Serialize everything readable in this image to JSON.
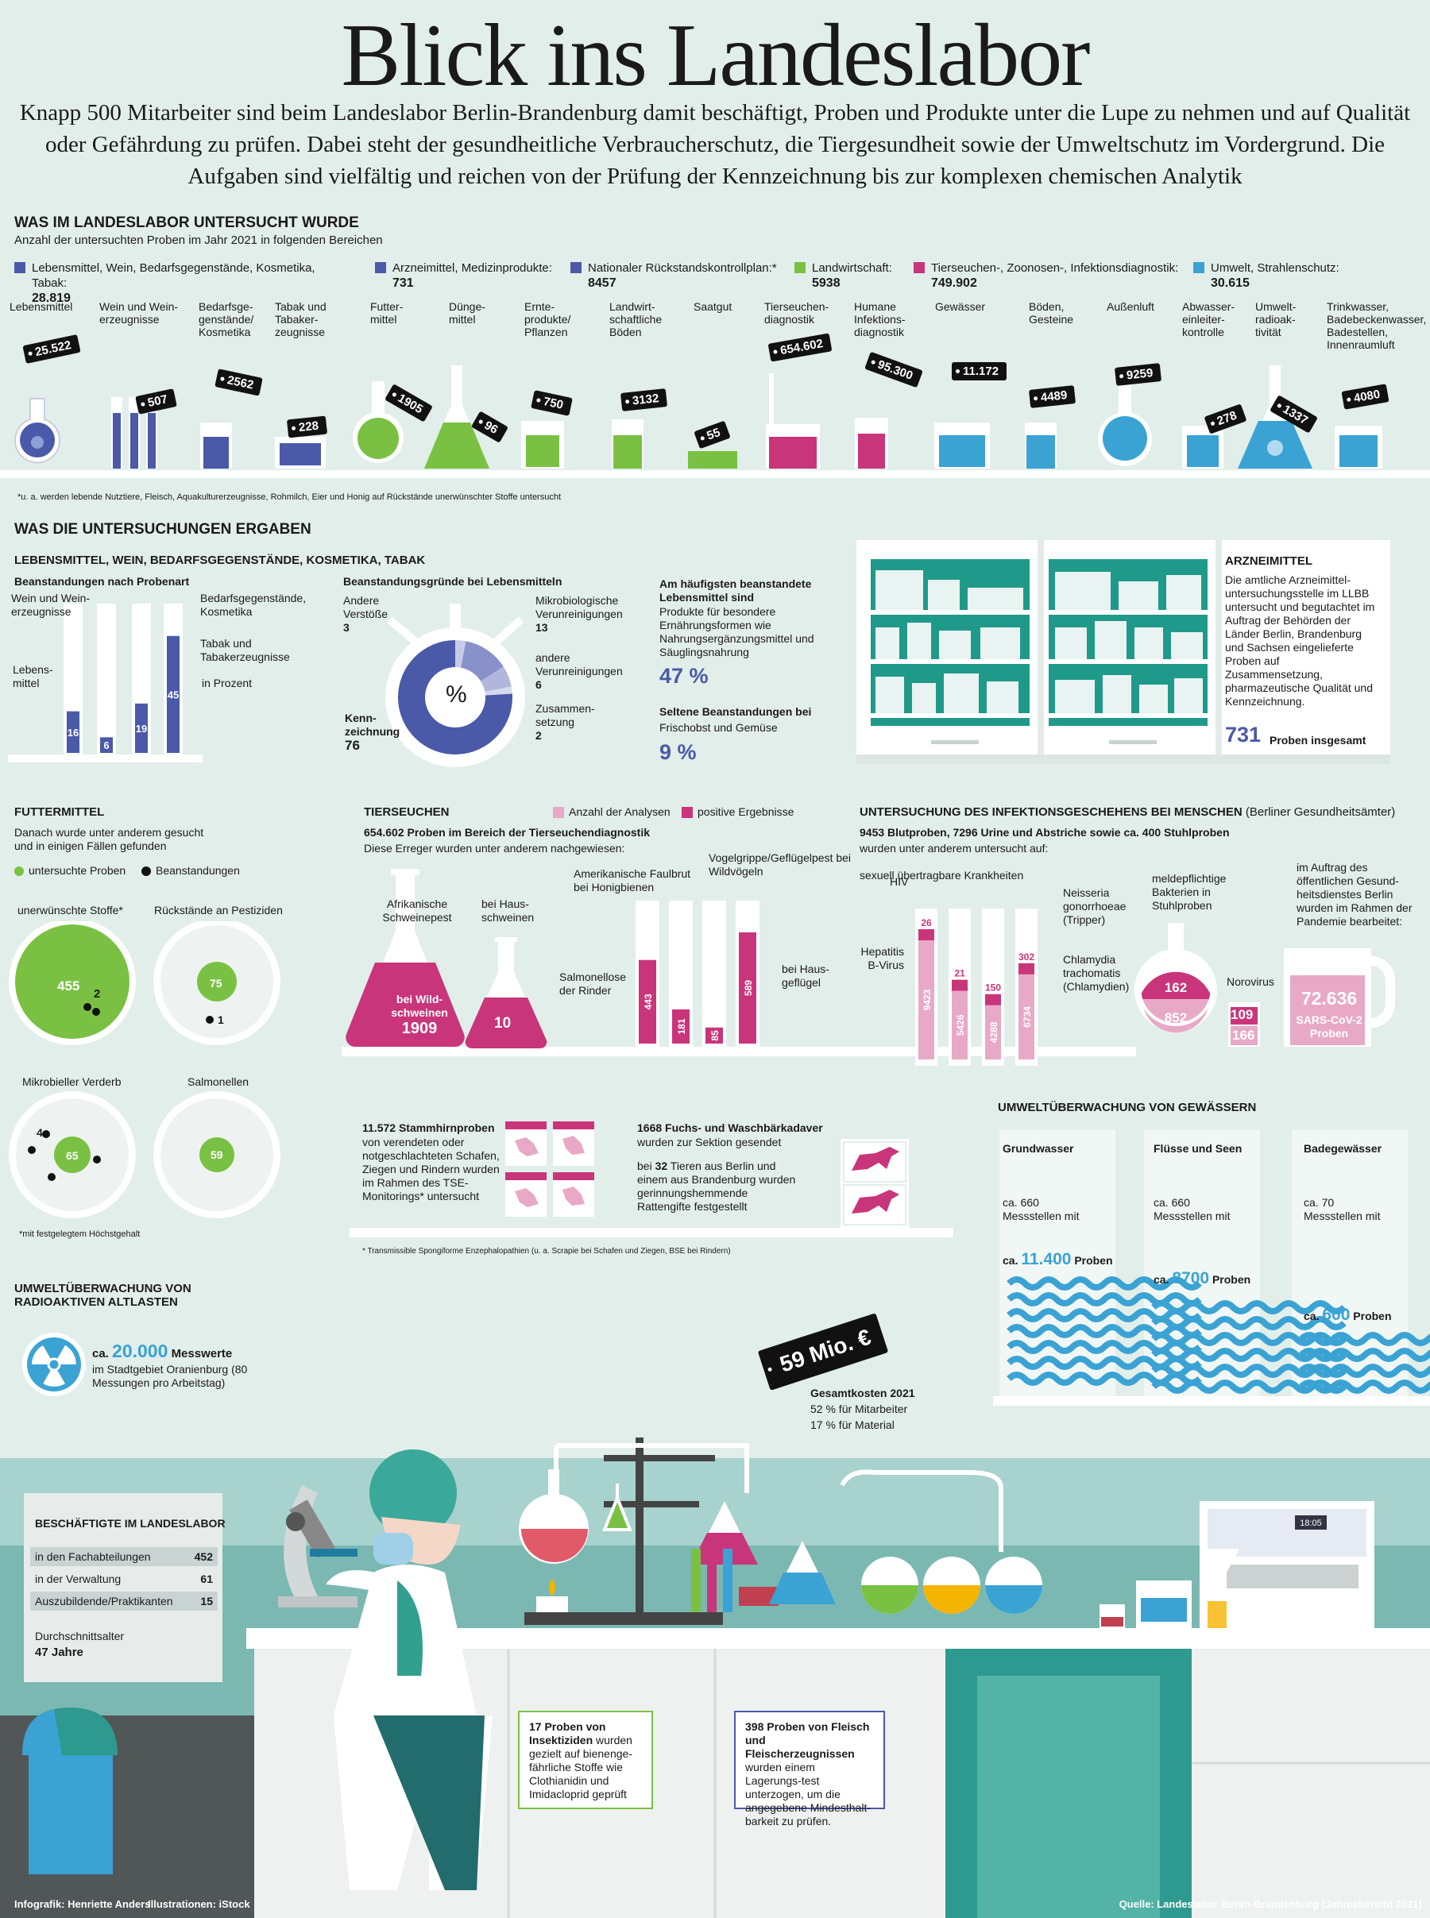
{
  "title": "Blick ins Landeslabor",
  "intro": "Knapp 500 Mitarbeiter sind beim Landeslabor Berlin-Brandenburg damit beschäftigt, Proben und Produkte unter die Lupe zu nehmen und auf Qualität oder Gefährdung zu prüfen. Dabei steht der gesundheitliche Verbraucherschutz, die Tiergesundheit sowie der Umweltschutz im Vordergrund. Die Aufgaben sind vielfältig und reichen von der Prüfung der Kennzeichnung bis zur komplexen chemischen Analytik",
  "colors": {
    "blue_dark": "#4a5aa8",
    "green": "#7ac143",
    "pink": "#c9357a",
    "light_blue": "#3aa3d4",
    "bg": "#e2eeea"
  },
  "section1": {
    "heading": "WAS IM LANDESLABOR UNTERSUCHT WURDE",
    "subheading": "Anzahl der untersuchten Proben im Jahr 2021 in folgenden Bereichen",
    "legend": [
      {
        "label": "Lebensmittel, Wein, Bedarfsgegenstände, Kosmetika, Tabak:",
        "value": "28.819",
        "color": "#4a5aa8"
      },
      {
        "label": "Arzneimittel, Medizinprodukte:",
        "value": "731",
        "color": "#4a5aa8"
      },
      {
        "label": "Nationaler Rückstandskontrollplan:*",
        "value": "8457",
        "color": "#4a5aa8"
      },
      {
        "label": "Landwirtschaft:",
        "value": "5938",
        "color": "#7ac143"
      },
      {
        "label": "Tierseuchen-, Zoonosen-, Infektionsdiagnostik:",
        "value": "749.902",
        "color": "#c9357a"
      },
      {
        "label": "Umwelt, Strahlenschutz:",
        "value": "30.615",
        "color": "#3aa3d4"
      }
    ],
    "categories": [
      {
        "label": "Lebensmittel",
        "value": "25.522"
      },
      {
        "label": "Wein und Wein-erzeugnisse",
        "value": "507"
      },
      {
        "label": "Bedarfsge-genstände/ Kosmetika",
        "value": "2562"
      },
      {
        "label": "Tabak und Tabaker-zeugnisse",
        "value": "228"
      },
      {
        "label": "Futter-mittel",
        "value": "1905"
      },
      {
        "label": "Dünge-mittel",
        "value": "96"
      },
      {
        "label": "Ernte-produkte/ Pflanzen",
        "value": "750"
      },
      {
        "label": "Landwirt-schaftliche Böden",
        "value": "3132"
      },
      {
        "label": "Saatgut",
        "value": "55"
      },
      {
        "label": "Tierseuchen-diagnostik",
        "value": "654.602"
      },
      {
        "label": "Humane Infektions-diagnostik",
        "value": "95.300"
      },
      {
        "label": "Gewässer",
        "value": "11.172"
      },
      {
        "label": "Böden, Gesteine",
        "value": "4489"
      },
      {
        "label": "Außenluft",
        "value": "9259"
      },
      {
        "label": "Abwasser-einleiter-kontrolle",
        "value": "278"
      },
      {
        "label": "Umwelt-radioak-tivität",
        "value": "1337"
      },
      {
        "label": "Trinkwasser, Badebeckenwasser, Badestellen, Innenraumluft",
        "value": "4080"
      }
    ],
    "footnote": "*u. a. werden lebende Nutztiere, Fleisch, Aquakulturerzeugnisse, Rohmilch, Eier und Honig auf Rückstände unerwünschter Stoffe untersucht"
  },
  "section2": {
    "heading": "WAS DIE UNTERSUCHUNGEN ERGABEN",
    "subheading": "LEBENSMITTEL, WEIN, BEDARFSGEGENSTÄNDE, KOSMETIKA, TABAK",
    "beanst_title": "Beanstandungen nach Probenart",
    "beanst_unit": "in Prozent",
    "beanst_bars": [
      {
        "label": "Lebens-mittel",
        "value": 16
      },
      {
        "label": "Wein und Wein-erzeugnisse",
        "value": 6
      },
      {
        "label": "Bedarfsgegenstände, Kosmetika",
        "value": 19
      },
      {
        "label": "Tabak und Tabakerzeugnisse",
        "value": 45
      }
    ],
    "gruende_title": "Beanstandungsgründe bei Lebensmitteln",
    "gruende_center": "%",
    "gruende": [
      {
        "label": "Andere Verstöße",
        "value": "3"
      },
      {
        "label": "Mikrobiologische Verunreinigungen",
        "value": "13"
      },
      {
        "label": "andere Verunreinigungen",
        "value": "6"
      },
      {
        "label": "Zusammen-setzung",
        "value": "2"
      },
      {
        "label": "Kenn-zeichnung",
        "value": "76"
      }
    ],
    "most_title": "Am häufigsten beanstandete Lebensmittel sind",
    "most_text": "Produkte für besondere Ernährungsformen wie Nahrungsergänzungsmittel und Säuglingsnahrung",
    "most_value": "47 %",
    "rare_title": "Seltene Beanstandungen bei",
    "rare_text": "Frischobst und Gemüse",
    "rare_value": "9 %",
    "arznei_title": "ARZNEIMITTEL",
    "arznei_text": "Die amtliche Arzneimittel-untersuchungsstelle im LLBB untersucht und begutachtet im Auftrag der Behörden der Länder Berlin, Brandenburg und Sachsen eingelieferte Proben auf Zusammensetzung, pharmazeutische Qualität und Kennzeichnung.",
    "arznei_value": "731",
    "arznei_value_label": "Proben insgesamt"
  },
  "futter": {
    "heading": "FUTTERMITTEL",
    "text": "Danach wurde unter anderem gesucht und in einigen Fällen gefunden",
    "legend_green": "untersuchte Proben",
    "legend_black": "Beanstandungen",
    "circles": [
      {
        "label": "unerwünschte Stoffe*",
        "samples": "455",
        "findings": "2"
      },
      {
        "label": "Rückstände an Pestiziden",
        "samples": "75",
        "findings": "1"
      },
      {
        "label": "Mikrobieller Verderb",
        "samples": "65",
        "findings": "4"
      },
      {
        "label": "Salmonellen",
        "samples": "59",
        "findings": ""
      }
    ],
    "footnote": "*mit festgelegtem Höchstgehalt"
  },
  "tier": {
    "heading": "TIERSEUCHEN",
    "legend_a": "Anzahl der Analysen",
    "legend_b": "positive Ergebnisse",
    "sub_bold": "654.602 Proben im Bereich der Tierseuchendiagnostik",
    "sub": "Diese Erreger wurden unter anderem nachgewiesen:",
    "flask1_label": "Afrikanische Schweinepest",
    "flask1_inner": "bei Wild-schweinen",
    "flask1_value": "1909",
    "flask2_label": "bei Haus-schweinen",
    "flask2_value": "10",
    "tubes_label_a": "Amerikanische Faulbrut bei Honigbienen",
    "tubes_label_b": "Vogelgrippe/Geflügelpest bei Wildvögeln",
    "tubes_label_c": "Salmonellose der Rinder",
    "tubes_label_d": "bei Haus-geflügel",
    "tubes": [
      "443",
      "181",
      "85",
      "589"
    ],
    "tse_bold": "11.572 Stammhirnproben",
    "tse_text": "von verendeten oder notgeschlachteten Schafen, Ziegen und Rindern wurden im Rahmen des TSE-Monitorings* untersucht",
    "fox_bold": "1668 Fuchs- und Waschbärkadaver",
    "fox_text1": "wurden zur Sektion gesendet",
    "fox_text2a": "bei ",
    "fox_text2b": "32",
    "fox_text2c": " Tieren aus Berlin und einem aus Brandenburg wurden gerinnungshemmende Rattengifte festgestellt",
    "footnote": "* Transmissible Spongiforme Enzephalopathien (u. a. Scrapie bei Schafen und Ziegen, BSE bei Rindern)"
  },
  "mensch": {
    "heading": "UNTERSUCHUNG DES INFEKTIONSGESCHEHENS BEI MENSCHEN",
    "heading_note": "(Berliner Gesundheitsämter)",
    "sub_bold": "9453 Blutproben, 7296 Urine und Abstriche sowie ca. 400 Stuhlproben",
    "sub": "wurden unter anderem untersucht auf:",
    "group": "sexuell übertragbare Krankheiten",
    "tubes": [
      {
        "label": "Hepatitis B-Virus",
        "total": "9423",
        "positive": "26"
      },
      {
        "label": "HIV",
        "total": "5426",
        "positive": "21"
      },
      {
        "label": "Neisseria gonorrhoeae (Tripper)",
        "total": "4288",
        "positive": "150"
      },
      {
        "label": "Chlamydia trachomatis (Chlamydien)",
        "total": "6734",
        "positive": "302"
      }
    ],
    "bakt_label": "meldepflichtige Bakterien in Stuhlproben",
    "bakt_a": "162",
    "bakt_b": "852",
    "noro_label": "Norovirus",
    "noro_a": "109",
    "noro_b": "166",
    "covid_label": "im Auftrag des öffentlichen Gesund-heitsdienstes Berlin wurden im Rahmen der Pandemie bearbeitet:",
    "covid_value": "72.636",
    "covid_sub": "SARS-CoV-2 Proben"
  },
  "gewaesser": {
    "heading": "UMWELTÜBERWACHUNG VON GEWÄSSERN",
    "cols": [
      {
        "title": "Grundwasser",
        "text": "ca. 660 Messstellen mit",
        "pre": "ca.",
        "value": "11.400",
        "post": "Proben"
      },
      {
        "title": "Flüsse und Seen",
        "text": "ca. 660 Messstellen mit",
        "pre": "ca.",
        "value": "8700",
        "post": "Proben"
      },
      {
        "title": "Badegewässer",
        "text": "ca. 70 Messstellen mit",
        "pre": "ca.",
        "value": "600",
        "post": "Proben"
      }
    ]
  },
  "radio": {
    "heading": "UMWELTÜBERWACHUNG VON RADIOAKTIVEN ALTLASTEN",
    "pre": "ca.",
    "value": "20.000",
    "post": "Messwerte",
    "text": "im Stadtgebiet Oranienburg (80 Messungen pro Arbeitstag)"
  },
  "kosten": {
    "tag": "59 Mio. €",
    "title": "Gesamtkosten 2021",
    "line1": "52 % für Mitarbeiter",
    "line2": "17 % für Material"
  },
  "staff": {
    "title": "BESCHÄFTIGTE IM LANDESLABOR",
    "rows": [
      {
        "label": "in den Fachabteilungen",
        "value": "452"
      },
      {
        "label": "in der Verwaltung",
        "value": "61"
      },
      {
        "label": "Auszubildende/Praktikanten",
        "value": "15"
      }
    ],
    "age_label": "Durchschnittsalter",
    "age_value": "47 Jahre"
  },
  "insekt": {
    "bold": "17 Proben von Insektiziden",
    "text": "wurden gezielt auf bienenge-fährliche Stoffe wie Clothianidin und Imidacloprid geprüft"
  },
  "fleisch": {
    "bold": "398 Proben von Fleisch und Fleischerzeugnissen",
    "text": "wurden einem Lagerungs-test unterzogen, um die angegebene Mindesthalt-barkeit zu prüfen."
  },
  "device_display": "18:05",
  "credits": {
    "left1": "Infografik: Henriette Anders",
    "left2": "Illustrationen: iStock",
    "right": "Quelle: Landeslabor Berlin-Brandenburg (Jahresbericht 2021)"
  }
}
